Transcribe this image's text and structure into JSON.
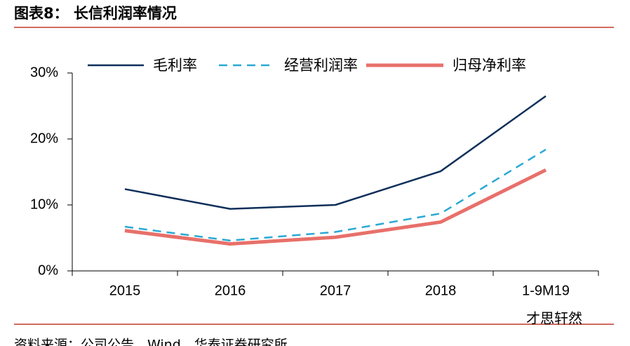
{
  "header": {
    "title": "图表8：  长信利润率情况"
  },
  "chart_data": {
    "type": "line",
    "categories": [
      "2015",
      "2016",
      "2017",
      "2018",
      "1-9M19"
    ],
    "series": [
      {
        "name": "毛利率",
        "color": "#0f2f5a",
        "style": "solid",
        "linewidth": 2.5,
        "values": [
          12.4,
          9.4,
          10.0,
          15.1,
          26.5
        ]
      },
      {
        "name": "经营利润率",
        "color": "#2aa8d4",
        "style": "dashed",
        "linewidth": 2.5,
        "values": [
          6.7,
          4.6,
          5.9,
          8.7,
          18.4
        ]
      },
      {
        "name": "归母净利率",
        "color": "#e8706a",
        "style": "solid",
        "linewidth": 5,
        "values": [
          6.1,
          4.1,
          5.1,
          7.4,
          15.3
        ]
      }
    ],
    "ylim": [
      0,
      30
    ],
    "yticks": [
      {
        "value": 0,
        "label": "0%"
      },
      {
        "value": 10,
        "label": "10%"
      },
      {
        "value": 20,
        "label": "20%"
      },
      {
        "value": 30,
        "label": "30%"
      }
    ],
    "legend": "top"
  },
  "footer": {
    "source": "资料来源：公司公告，Wind，华泰证券研究所",
    "watermark": "才思轩然"
  }
}
